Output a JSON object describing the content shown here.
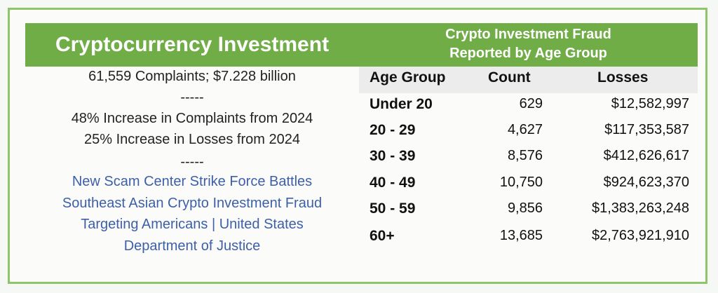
{
  "left": {
    "title": "Cryptocurrency Investment",
    "lines": [
      "61,559 Complaints; $7.228 billion",
      "-----",
      "48% Increase in Complaints from 2024",
      "25% Increase in Losses from 2024",
      "-----"
    ],
    "link": [
      "New Scam Center Strike Force Battles",
      "Southeast Asian Crypto Investment Fraud",
      "Targeting Americans | United States",
      "Department of Justice"
    ]
  },
  "table": {
    "title": [
      "Crypto Investment Fraud",
      "Reported by Age Group"
    ],
    "columns": [
      "Age Group",
      "Count",
      "Losses"
    ],
    "rows": [
      [
        "Under 20",
        "629",
        "$12,582,997"
      ],
      [
        "20 - 29",
        "4,627",
        "$117,353,587"
      ],
      [
        "30 - 39",
        "8,576",
        "$412,626,617"
      ],
      [
        "40 - 49",
        "10,750",
        "$924,623,370"
      ],
      [
        "50 - 59",
        "9,856",
        "$1,383,263,248"
      ],
      [
        "60+",
        "13,685",
        "$2,763,921,910"
      ]
    ]
  }
}
